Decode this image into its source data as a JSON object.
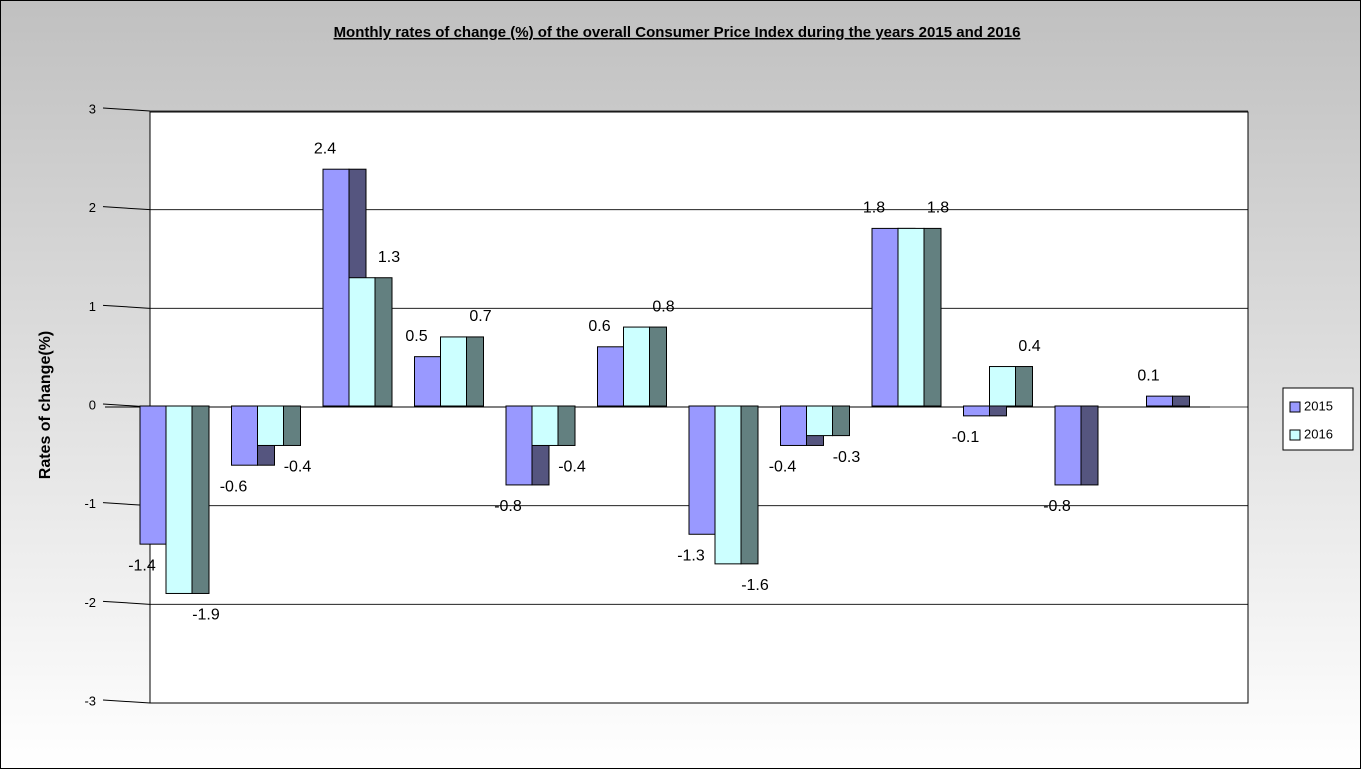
{
  "chart_data": {
    "type": "bar3d",
    "title": "Monthly rates of change (%) of the overall Consumer Price Index during the years 2015 and 2016",
    "y_label": "Rates of change(%)",
    "categories": [
      null,
      null,
      null,
      null,
      null,
      null,
      null,
      null,
      null,
      null,
      null,
      null
    ],
    "series": [
      {
        "name": "2015",
        "color": "#9999ff",
        "side_color": "#55557f",
        "values": [
          -1.4,
          -0.6,
          2.4,
          0.5,
          -0.8,
          0.6,
          -1.3,
          -0.4,
          1.8,
          -0.1,
          -0.8,
          0.1
        ]
      },
      {
        "name": "2016",
        "color": "#ccffff",
        "side_color": "#638080",
        "values": [
          -1.9,
          -0.4,
          1.3,
          0.7,
          -0.4,
          0.8,
          -1.6,
          -0.3,
          1.8,
          0.4,
          null,
          null
        ]
      }
    ],
    "ylim": [
      -3,
      3
    ],
    "yticks": [
      -3,
      -2,
      -1,
      0,
      1,
      2,
      3
    ],
    "grid": true,
    "legend": "right"
  }
}
